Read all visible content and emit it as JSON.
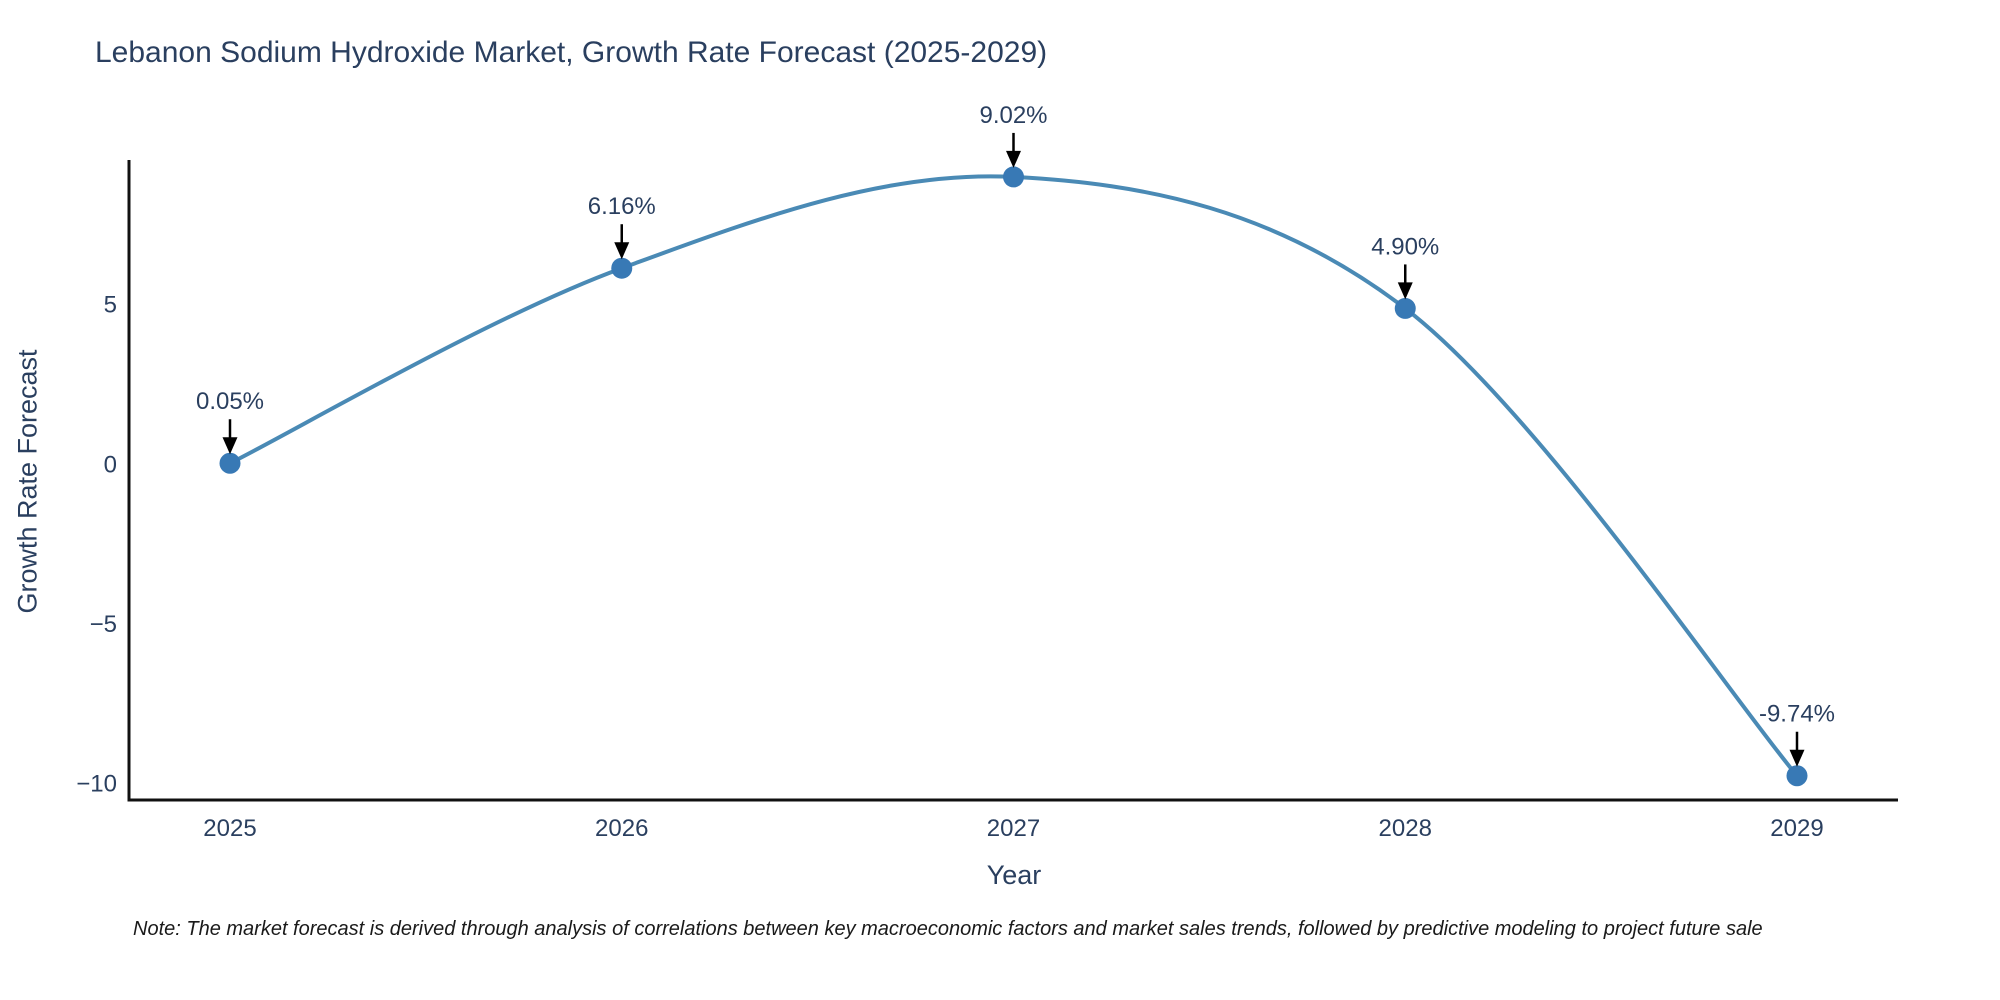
{
  "chart_data": {
    "type": "line",
    "title": "Lebanon Sodium Hydroxide Market, Growth Rate Forecast (2025-2029)",
    "xlabel": "Year",
    "ylabel": "Growth Rate Forecast",
    "categories": [
      "2025",
      "2026",
      "2027",
      "2028",
      "2029"
    ],
    "values": [
      0.05,
      6.16,
      9.02,
      4.9,
      -9.74
    ],
    "point_labels": [
      "0.05%",
      "6.16%",
      "9.02%",
      "4.90%",
      "-9.74%"
    ],
    "yticks": [
      5,
      0,
      -5,
      -10
    ],
    "ylim": [
      -10.5,
      9.55
    ],
    "grid": false,
    "legend": "none",
    "line_shape": "spline",
    "line_color": "#4a8ab5",
    "marker_color": "#3879b5",
    "axis_color": "#111111",
    "text_color": "#2a3f5f",
    "annotation_arrow_color": "#000000"
  },
  "note": "Note: The market forecast is derived through analysis of correlations between key macroeconomic factors and market sales trends, followed by predictive modeling to project future sale"
}
